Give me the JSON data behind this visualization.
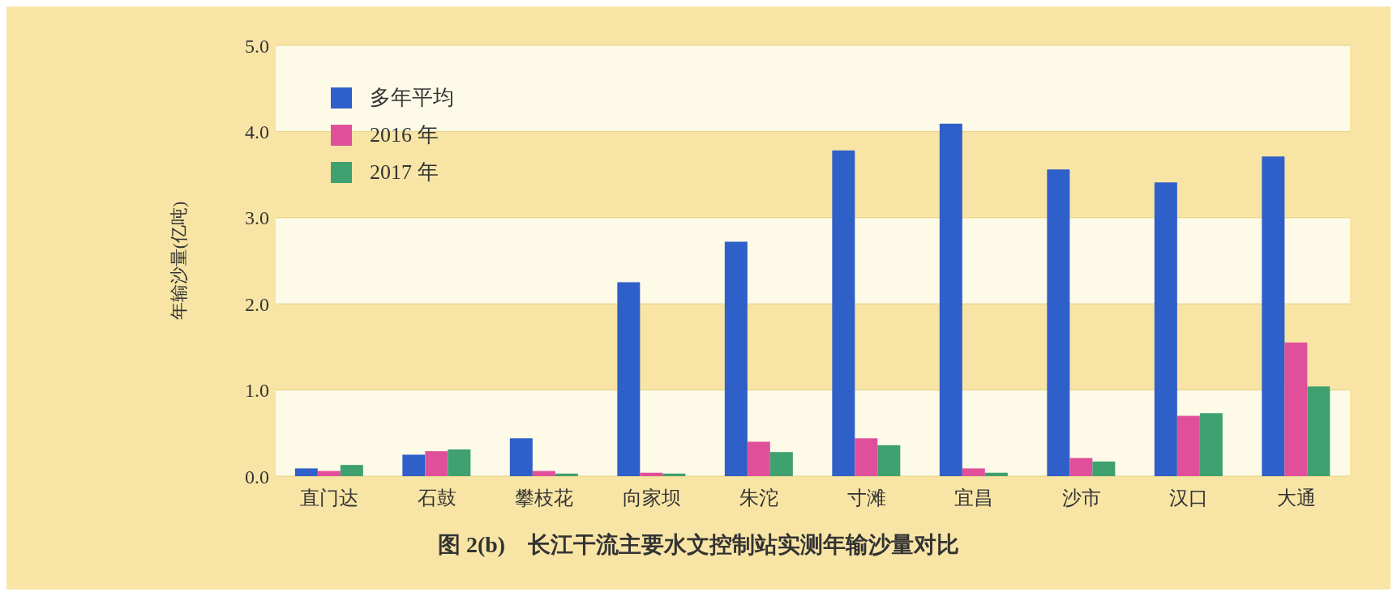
{
  "chart_data": {
    "type": "bar",
    "title": "图 2(b)　长江干流主要水文控制站实测年输沙量对比",
    "ylabel": "年输沙量(亿吨)",
    "categories": [
      "直门达",
      "石鼓",
      "攀枝花",
      "向家坝",
      "朱沱",
      "寸滩",
      "宜昌",
      "沙市",
      "汉口",
      "大通"
    ],
    "series": [
      {
        "name": "多年平均",
        "color": "#2f5fc8",
        "values": [
          0.09,
          0.25,
          0.44,
          2.25,
          2.72,
          3.78,
          4.09,
          3.56,
          3.41,
          3.71
        ]
      },
      {
        "name": "2016 年",
        "color": "#e0509a",
        "values": [
          0.06,
          0.29,
          0.06,
          0.04,
          0.4,
          0.44,
          0.09,
          0.21,
          0.7,
          1.55
        ]
      },
      {
        "name": "2017 年",
        "color": "#3fa070",
        "values": [
          0.13,
          0.31,
          0.03,
          0.03,
          0.28,
          0.36,
          0.04,
          0.17,
          0.73,
          1.04
        ]
      }
    ],
    "ylim": [
      0,
      5
    ],
    "yticks": [
      {
        "value": 0,
        "label": "0.0"
      },
      {
        "value": 1,
        "label": "1.0"
      },
      {
        "value": 2,
        "label": "2.0"
      },
      {
        "value": 3,
        "label": "3.0"
      },
      {
        "value": 4,
        "label": "4.0"
      },
      {
        "value": 5,
        "label": "5.0"
      }
    ],
    "grid": "y",
    "legend": "top left"
  }
}
